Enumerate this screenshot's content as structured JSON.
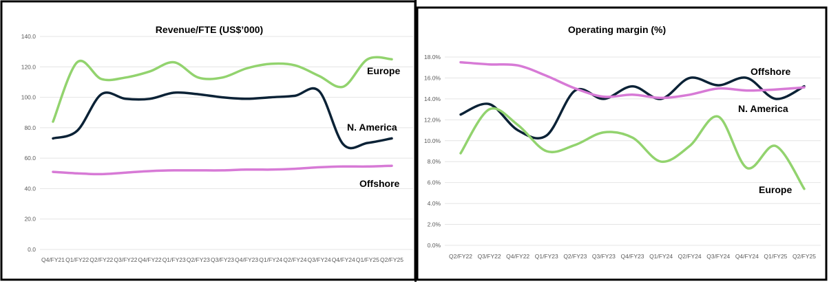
{
  "chart_data": [
    {
      "type": "line",
      "title": "Revenue/FTE (US$’000)",
      "xlabel": "",
      "ylabel": "",
      "ylim": [
        0,
        140
      ],
      "yticks": [
        "0.0",
        "20.0",
        "40.0",
        "60.0",
        "80.0",
        "100.0",
        "120.0",
        "140.0"
      ],
      "grid": true,
      "categories": [
        "Q4/FY21",
        "Q1/FY22",
        "Q2/FY22",
        "Q3/FY22",
        "Q4/FY22",
        "Q1/FY23",
        "Q2/FY23",
        "Q3/FY23",
        "Q4/FY23",
        "Q1/FY24",
        "Q2/FY24",
        "Q3/FY24",
        "Q4/FY24",
        "Q1/FY25",
        "Q2/FY25"
      ],
      "series": [
        {
          "name": "Europe",
          "color": "#92d36e",
          "values": [
            84,
            123,
            112,
            113,
            117,
            123,
            113,
            113,
            119,
            122,
            121,
            114,
            107,
            125,
            125
          ]
        },
        {
          "name": "N. America",
          "color": "#0b2236",
          "values": [
            73,
            78,
            102,
            99,
            99,
            103,
            102,
            100,
            99,
            100,
            101,
            104,
            69,
            70,
            73
          ]
        },
        {
          "name": "Offshore",
          "color": "#d77ad6",
          "values": [
            51,
            50,
            49.5,
            50.5,
            51.5,
            52,
            52,
            52,
            52.5,
            52.5,
            53,
            54,
            54.5,
            54.5,
            55
          ]
        }
      ]
    },
    {
      "type": "line",
      "title": "Operating margin (%)",
      "xlabel": "",
      "ylabel": "",
      "ylim": [
        0,
        18
      ],
      "yticks": [
        "0.0%",
        "2.0%",
        "4.0%",
        "6.0%",
        "8.0%",
        "10.0%",
        "12.0%",
        "14.0%",
        "16.0%",
        "18.0%"
      ],
      "grid": true,
      "categories": [
        "Q2/FY22",
        "Q3/FY22",
        "Q4/FY22",
        "Q1/FY23",
        "Q2/FY23",
        "Q3/FY23",
        "Q4/FY23",
        "Q1/FY24",
        "Q2/FY24",
        "Q3/FY24",
        "Q4/FY24",
        "Q1/FY25",
        "Q2/FY25"
      ],
      "series": [
        {
          "name": "Offshore",
          "color": "#0b2236",
          "values": [
            12.5,
            13.5,
            11,
            10.5,
            14.8,
            14,
            15.2,
            14,
            16,
            15.3,
            16,
            14,
            15.2
          ]
        },
        {
          "name": "N. America",
          "color": "#d77ad6",
          "values": [
            17.5,
            17.3,
            17.2,
            16.2,
            15,
            14.2,
            14.4,
            14.1,
            14.4,
            15,
            14.8,
            14.9,
            15.1
          ]
        },
        {
          "name": "Europe",
          "color": "#92d36e",
          "values": [
            8.8,
            13,
            11.5,
            9,
            9.6,
            10.8,
            10.3,
            8,
            9.5,
            12.3,
            7.4,
            9.5,
            5.4
          ]
        }
      ]
    }
  ]
}
